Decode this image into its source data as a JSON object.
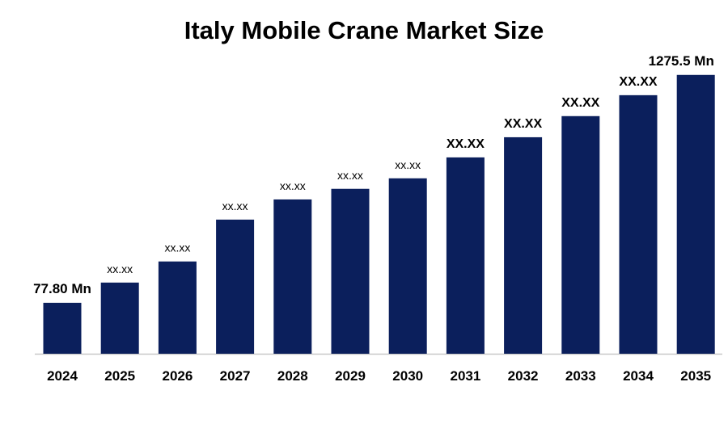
{
  "chart_data": {
    "type": "bar",
    "title": "Italy Mobile Crane Market Size",
    "categories": [
      "2024",
      "2025",
      "2026",
      "2027",
      "2028",
      "2029",
      "2030",
      "2031",
      "2032",
      "2033",
      "2034",
      "2035"
    ],
    "values": [
      77.8,
      184,
      295,
      515,
      621,
      677,
      732,
      842,
      948,
      1059,
      1169,
      1275.5
    ],
    "value_labels": [
      "77.80 Mn",
      "xx.xx",
      "xx.xx",
      "xx.xx",
      "xx.xx",
      "xx.xx",
      "xx.xx",
      "XX.XX",
      "XX.XX",
      "XX.XX",
      "XX.XX",
      "1275.5 Mn"
    ],
    "color": "#0b1f5c",
    "ylim": [
      -190,
      1300
    ]
  }
}
